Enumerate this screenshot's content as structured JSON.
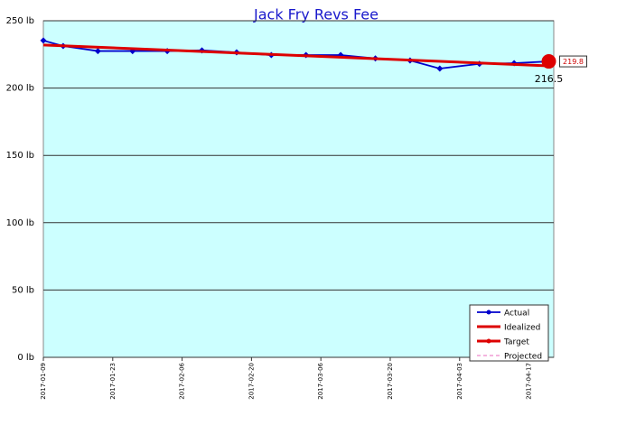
{
  "chart_data": {
    "type": "line",
    "title": "Jack Fry Revs Fee",
    "xlim": [
      "2017-01-09",
      "2017-04-22"
    ],
    "xticks": [
      "2017-01-09",
      "2017-01-23",
      "2017-02-06",
      "2017-02-20",
      "2017-03-06",
      "2017-03-20",
      "2017-04-03",
      "2017-04-17"
    ],
    "ylim": [
      0,
      250
    ],
    "yticks": [
      {
        "value": 0,
        "label": "0 lb"
      },
      {
        "value": 50,
        "label": "50 lb"
      },
      {
        "value": 100,
        "label": "100 lb"
      },
      {
        "value": 150,
        "label": "150 lb"
      },
      {
        "value": 200,
        "label": "200 lb"
      },
      {
        "value": 250,
        "label": "250 lb"
      }
    ],
    "grid": true,
    "legend": "lower right",
    "series": [
      {
        "name": "Actual",
        "color": "#0000cc",
        "x": [
          "2017-01-09",
          "2017-01-13",
          "2017-01-20",
          "2017-01-27",
          "2017-02-03",
          "2017-02-10",
          "2017-02-17",
          "2017-02-24",
          "2017-03-03",
          "2017-03-10",
          "2017-03-17",
          "2017-03-24",
          "2017-03-30",
          "2017-04-07",
          "2017-04-14",
          "2017-04-21"
        ],
        "values": [
          235.3,
          231.2,
          227.5,
          227.5,
          227.5,
          228,
          226.5,
          224.5,
          224.5,
          224.5,
          222,
          220.5,
          214.5,
          218,
          218.5,
          219.8
        ]
      },
      {
        "name": "Idealized",
        "color": "#dd0000",
        "x": [
          "2017-01-09",
          "2017-04-21"
        ],
        "values": [
          232,
          216.5
        ]
      },
      {
        "name": "Target",
        "color": "#dd0000",
        "x": [],
        "values": []
      },
      {
        "name": "Projected",
        "color": "#ee88cc",
        "x": [],
        "values": []
      }
    ],
    "current": {
      "x": "2017-04-21",
      "value": 219.8
    },
    "end_label": {
      "x": "2017-04-21",
      "value": 216.5
    }
  }
}
